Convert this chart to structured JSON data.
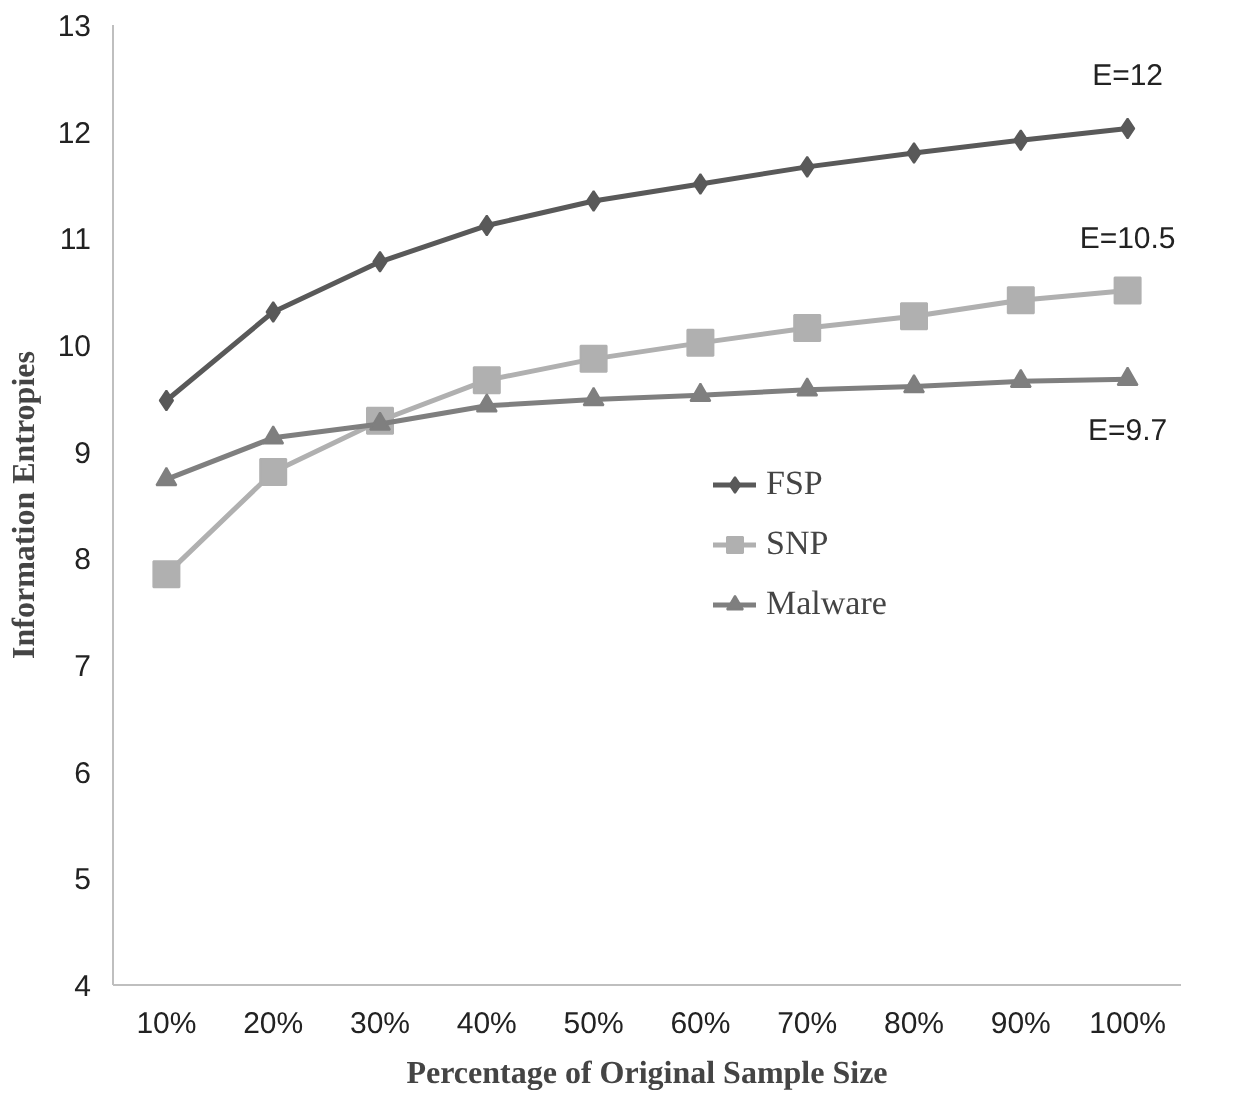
{
  "chart_data": {
    "type": "line",
    "xlabel": "Percentage of Original Sample Size",
    "ylabel": "Information Entropies",
    "categories": [
      "10%",
      "20%",
      "30%",
      "40%",
      "50%",
      "60%",
      "70%",
      "80%",
      "90%",
      "100%"
    ],
    "series": [
      {
        "name": "FSP",
        "color": "#595959",
        "marker": "diamond",
        "values": [
          9.48,
          10.31,
          10.78,
          11.12,
          11.35,
          11.51,
          11.67,
          11.8,
          11.92,
          12.03
        ]
      },
      {
        "name": "SNP",
        "color": "#b0b0b0",
        "marker": "square",
        "values": [
          7.85,
          8.81,
          9.29,
          9.67,
          9.87,
          10.02,
          10.16,
          10.27,
          10.42,
          10.51
        ]
      },
      {
        "name": "Malware",
        "color": "#7f7f7f",
        "marker": "triangle",
        "values": [
          8.74,
          9.13,
          9.26,
          9.43,
          9.49,
          9.53,
          9.58,
          9.61,
          9.66,
          9.68
        ]
      }
    ],
    "ylim": [
      4,
      13
    ],
    "yticks": [
      4,
      5,
      6,
      7,
      8,
      9,
      10,
      11,
      12,
      13
    ],
    "grid": false,
    "legend": "center",
    "line_style": "solid",
    "annotations": [
      "E=12",
      "E=10.5",
      "E=9.7"
    ]
  }
}
